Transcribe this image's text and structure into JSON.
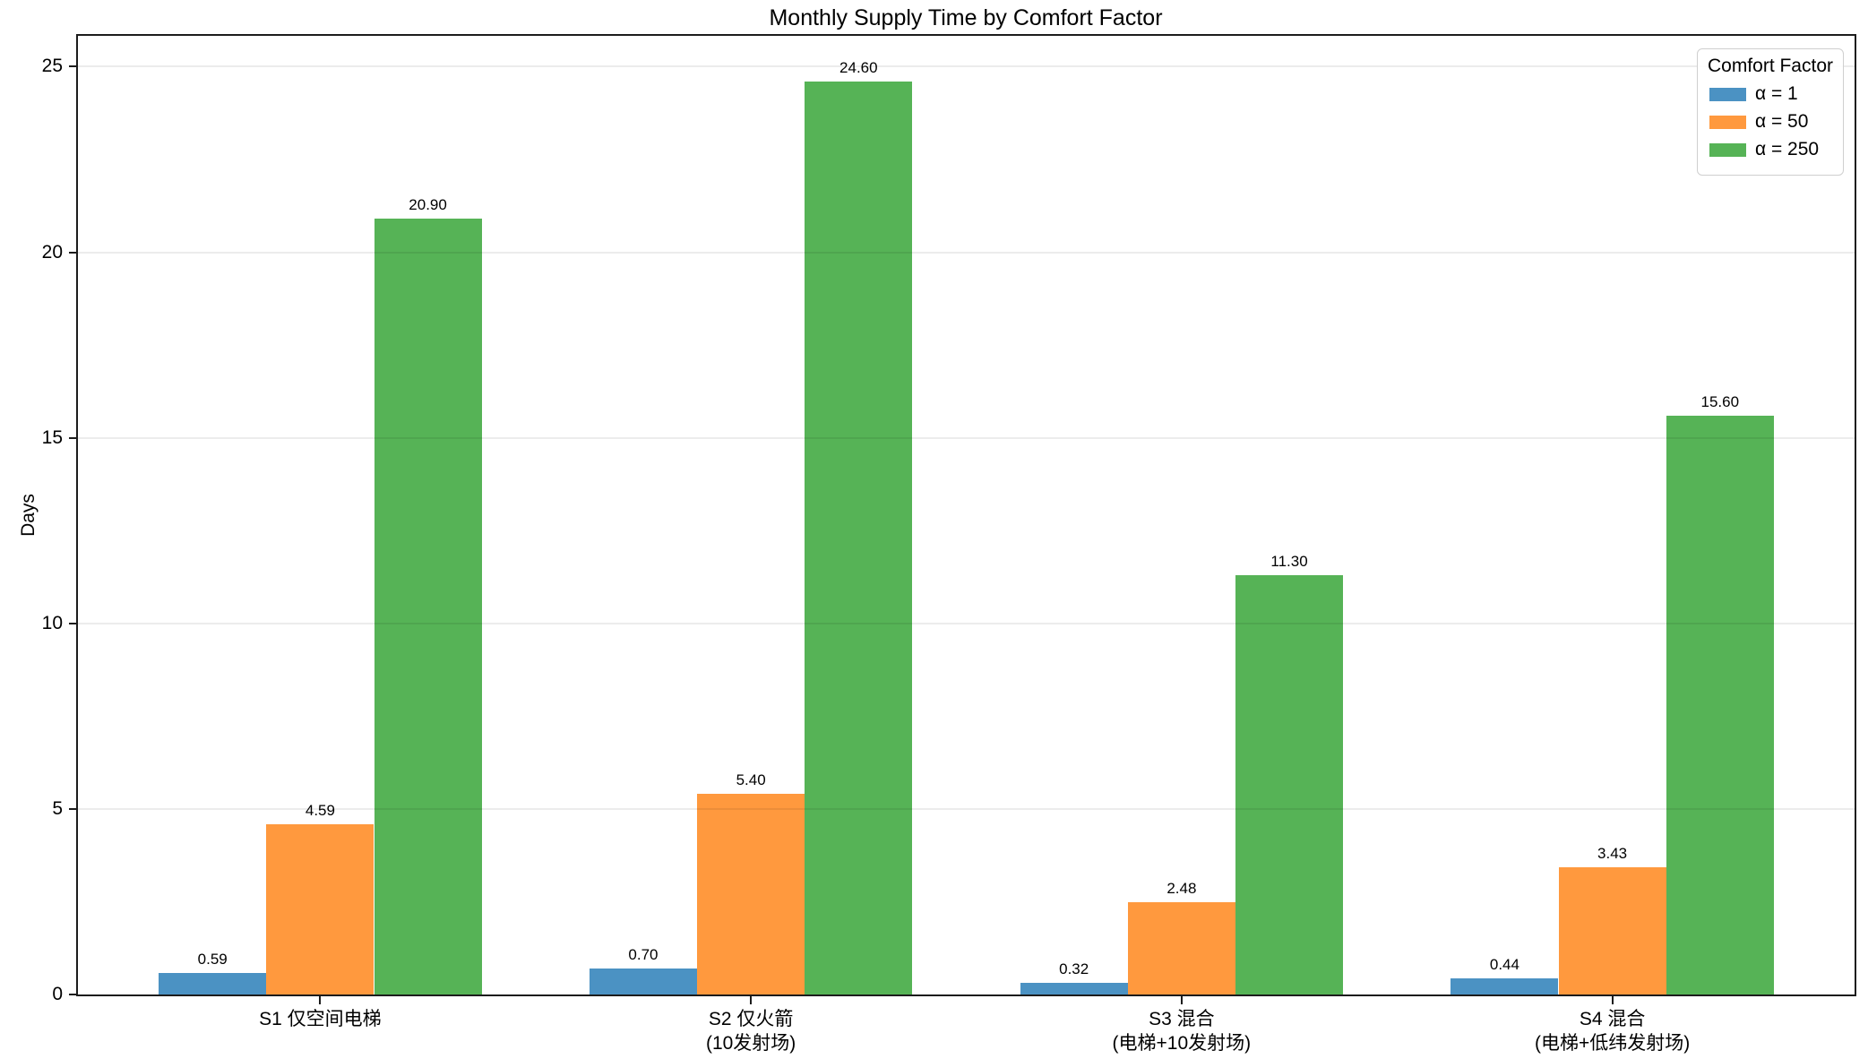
{
  "chart_data": {
    "type": "bar",
    "title": "Monthly Supply Time by Comfort Factor",
    "ylabel": "Days",
    "xlabel": "",
    "ylim": [
      0,
      25.83
    ],
    "yticks": [
      "0",
      "5",
      "10",
      "15",
      "20",
      "25"
    ],
    "grid": "horizontal",
    "legend": {
      "title": "Comfort Factor",
      "position": "upper right"
    },
    "categories": [
      "S1 仅空间电梯",
      "S2 仅火箭\n(10发射场)",
      "S3 混合\n(电梯+10发射场)",
      "S4 混合\n(电梯+低纬发射场)"
    ],
    "series": [
      {
        "name": "α = 1",
        "color": "#4b92c3",
        "values": [
          0.59,
          0.7,
          0.32,
          0.44
        ],
        "bar_labels": [
          "0.59",
          "0.70",
          "0.32",
          "0.44"
        ]
      },
      {
        "name": "α = 50",
        "color": "#ff993e",
        "values": [
          4.59,
          5.4,
          2.48,
          3.43
        ],
        "bar_labels": [
          "4.59",
          "5.40",
          "2.48",
          "3.43"
        ]
      },
      {
        "name": "α = 250",
        "color": "#56b356",
        "values": [
          20.9,
          24.6,
          11.3,
          15.6
        ],
        "bar_labels": [
          "20.90",
          "24.60",
          "11.30",
          "15.60"
        ]
      }
    ]
  }
}
